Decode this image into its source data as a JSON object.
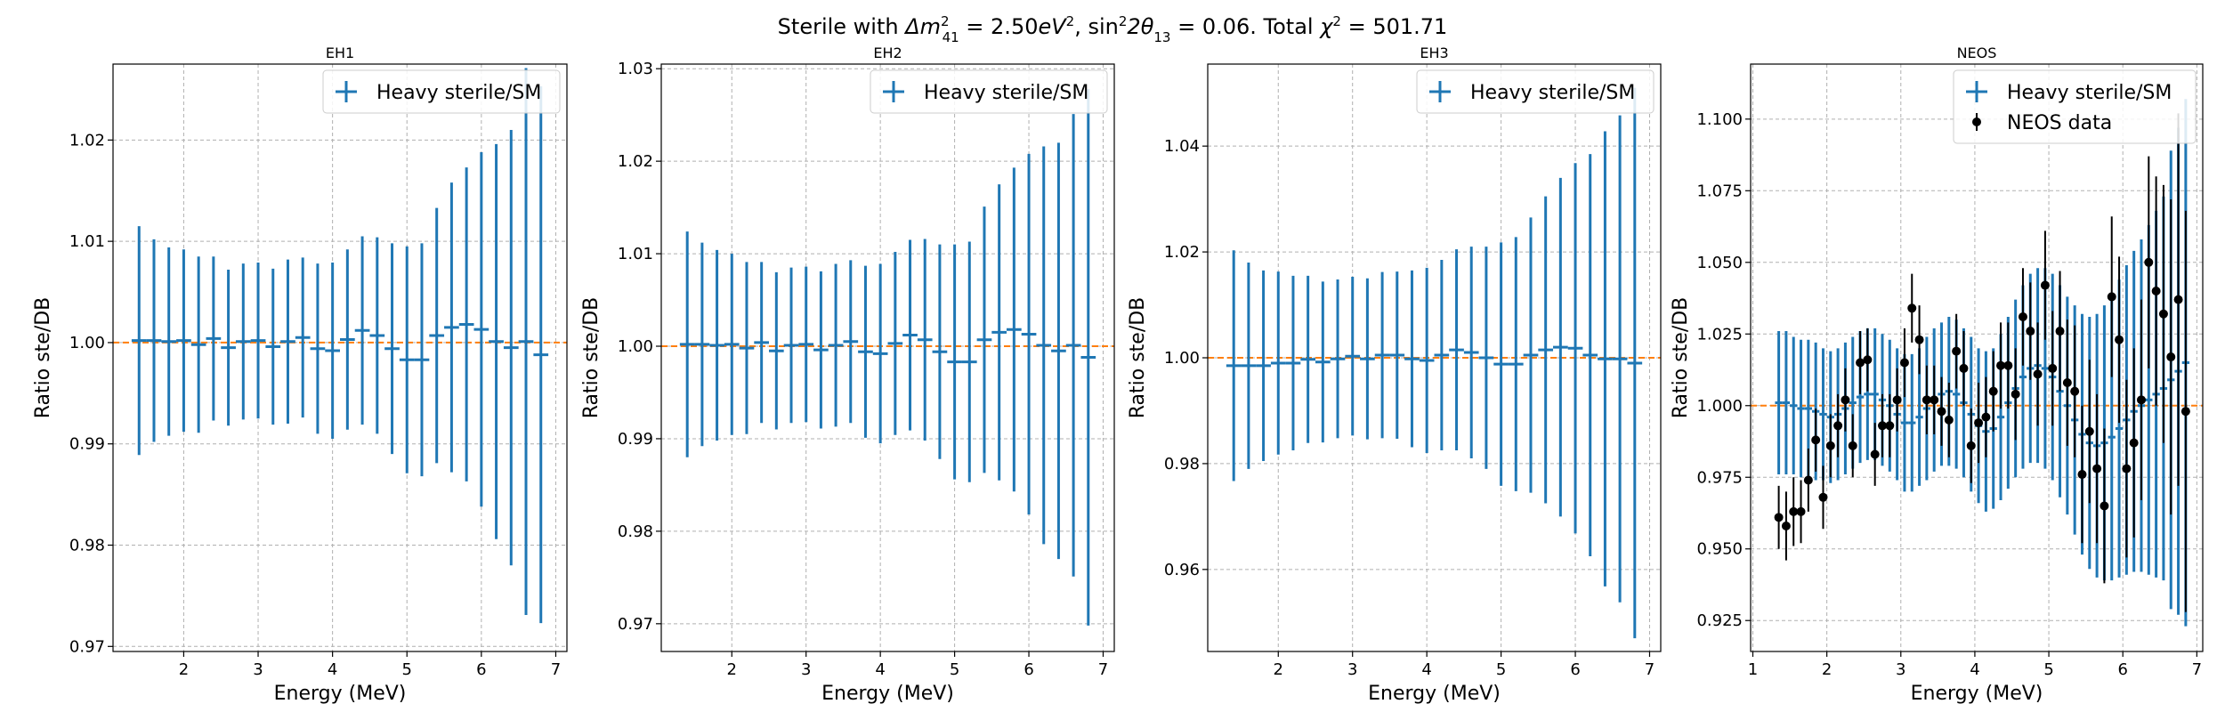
{
  "suptitle": "Sterile with Δm²₄₁ = 2.50eV², sin²2θ₁₃ = 0.06. Total χ² = 501.71",
  "suptitle_parts": {
    "a": "Sterile with ",
    "delta_m": "Δm",
    "sup2": "2",
    "sub41": "41",
    "eq1": " = 2.50",
    "eV": "eV",
    "comma": ", ",
    "sin": "sin",
    "two_theta": "2θ",
    "sub13": "13",
    "eq2": " = 0.06. Total ",
    "chi": "χ",
    "eq3": " = 501.71"
  },
  "colors": {
    "series": "#1f77b4",
    "reference": "#ff7f0e",
    "data": "#000000",
    "grid": "#b0b0b0"
  },
  "chart_data": [
    {
      "type": "scatter",
      "title": "EH1",
      "xlabel": "Energy (MeV)",
      "ylabel": "Ratio ste/DB",
      "xlim": [
        1.05,
        7.15
      ],
      "ylim": [
        0.9695,
        1.0275
      ],
      "xticks": [
        2,
        3,
        4,
        5,
        6,
        7
      ],
      "yticks": [
        0.97,
        0.98,
        0.99,
        1.0,
        1.01,
        1.02
      ],
      "ytick_labels": [
        "0.97",
        "0.98",
        "0.99",
        "1.00",
        "1.01",
        "1.02"
      ],
      "grid": true,
      "legend_position": "upper right",
      "reference_line": 1.0,
      "series": [
        {
          "name": "Heavy sterile/SM",
          "style": "errorbar",
          "half_width": 0.1,
          "x": [
            1.4,
            1.6,
            1.8,
            2.0,
            2.2,
            2.4,
            2.6,
            2.8,
            3.0,
            3.2,
            3.4,
            3.6,
            3.8,
            4.0,
            4.2,
            4.4,
            4.6,
            4.8,
            5.0,
            5.2,
            5.4,
            5.6,
            5.8,
            6.0,
            6.2,
            6.4,
            6.6,
            6.8
          ],
          "y": [
            1.0002,
            1.0002,
            1.0001,
            1.0002,
            0.9998,
            1.0004,
            0.9995,
            1.0001,
            1.0002,
            0.9996,
            1.0001,
            1.0005,
            0.9994,
            0.9992,
            1.0003,
            1.0012,
            1.0007,
            0.9994,
            0.9983,
            0.9983,
            1.0007,
            1.0015,
            1.0018,
            1.0013,
            1.0001,
            0.9995,
            1.0001,
            0.9988
          ],
          "yerr": [
            0.0113,
            0.01,
            0.0093,
            0.009,
            0.0087,
            0.0081,
            0.0077,
            0.0077,
            0.0077,
            0.0077,
            0.0081,
            0.0079,
            0.0084,
            0.0087,
            0.0089,
            0.0093,
            0.0097,
            0.0104,
            0.0112,
            0.0115,
            0.0126,
            0.0143,
            0.0155,
            0.0175,
            0.0195,
            0.0215,
            0.027,
            0.0265
          ]
        }
      ]
    },
    {
      "type": "scatter",
      "title": "EH2",
      "xlabel": "Energy (MeV)",
      "ylabel": "Ratio ste/DB",
      "xlim": [
        1.05,
        7.15
      ],
      "ylim": [
        0.967,
        1.0305
      ],
      "xticks": [
        2,
        3,
        4,
        5,
        6,
        7
      ],
      "yticks": [
        0.97,
        0.98,
        0.99,
        1.0,
        1.01,
        1.02,
        1.03
      ],
      "ytick_labels": [
        "0.97",
        "0.98",
        "0.99",
        "1.00",
        "1.01",
        "1.02",
        "1.03"
      ],
      "grid": true,
      "legend_position": "upper right",
      "reference_line": 1.0,
      "series": [
        {
          "name": "Heavy sterile/SM",
          "style": "errorbar",
          "half_width": 0.1,
          "x": [
            1.4,
            1.6,
            1.8,
            2.0,
            2.2,
            2.4,
            2.6,
            2.8,
            3.0,
            3.2,
            3.4,
            3.6,
            3.8,
            4.0,
            4.2,
            4.4,
            4.6,
            4.8,
            5.0,
            5.2,
            5.4,
            5.6,
            5.8,
            6.0,
            6.2,
            6.4,
            6.6,
            6.8
          ],
          "y": [
            1.0002,
            1.0002,
            1.0001,
            1.0002,
            0.9998,
            1.0004,
            0.9995,
            1.0001,
            1.0002,
            0.9996,
            1.0001,
            1.0005,
            0.9994,
            0.9992,
            1.0003,
            1.0012,
            1.0007,
            0.9994,
            0.9983,
            0.9983,
            1.0007,
            1.0015,
            1.0018,
            1.0013,
            1.0001,
            0.9995,
            1.0001,
            0.9988
          ],
          "yerr": [
            0.0122,
            0.011,
            0.0103,
            0.0098,
            0.0093,
            0.0087,
            0.0085,
            0.0084,
            0.0084,
            0.0085,
            0.0088,
            0.0088,
            0.0093,
            0.0097,
            0.0099,
            0.0103,
            0.0109,
            0.0116,
            0.0127,
            0.013,
            0.0144,
            0.016,
            0.0175,
            0.0195,
            0.0215,
            0.0225,
            0.025,
            0.029
          ]
        }
      ]
    },
    {
      "type": "scatter",
      "title": "EH3",
      "xlabel": "Energy (MeV)",
      "ylabel": "Ratio ste/DB",
      "xlim": [
        1.05,
        7.15
      ],
      "ylim": [
        0.9445,
        1.0555
      ],
      "xticks": [
        2,
        3,
        4,
        5,
        6,
        7
      ],
      "yticks": [
        0.96,
        0.98,
        1.0,
        1.02,
        1.04
      ],
      "ytick_labels": [
        "0.96",
        "0.98",
        "1.00",
        "1.02",
        "1.04"
      ],
      "grid": true,
      "legend_position": "upper right",
      "reference_line": 1.0,
      "series": [
        {
          "name": "Heavy sterile/SM",
          "style": "errorbar",
          "half_width": 0.1,
          "x": [
            1.4,
            1.6,
            1.8,
            2.0,
            2.2,
            2.4,
            2.6,
            2.8,
            3.0,
            3.2,
            3.4,
            3.6,
            3.8,
            4.0,
            4.2,
            4.4,
            4.6,
            4.8,
            5.0,
            5.2,
            5.4,
            5.6,
            5.8,
            6.0,
            6.2,
            6.4,
            6.6,
            6.8
          ],
          "y": [
            0.9985,
            0.9985,
            0.9985,
            0.999,
            0.999,
            0.9997,
            0.9992,
            0.9998,
            1.0003,
            0.9998,
            1.0005,
            1.0005,
            0.9998,
            0.9995,
            1.0005,
            1.0015,
            1.001,
            1.0,
            0.9988,
            0.9988,
            1.0005,
            1.0015,
            1.002,
            1.0018,
            1.0005,
            0.9998,
            0.9998,
            0.999
          ],
          "yerr": [
            0.0218,
            0.0195,
            0.018,
            0.0173,
            0.0165,
            0.0158,
            0.0152,
            0.015,
            0.015,
            0.0152,
            0.0157,
            0.0158,
            0.0167,
            0.0175,
            0.018,
            0.019,
            0.02,
            0.021,
            0.023,
            0.024,
            0.026,
            0.029,
            0.032,
            0.035,
            0.038,
            0.043,
            0.046,
            0.052
          ]
        }
      ]
    },
    {
      "type": "scatter",
      "title": "NEOS",
      "xlabel": "Energy (MeV)",
      "ylabel": "Ratio ste/DB",
      "xlim": [
        0.97,
        7.08
      ],
      "ylim": [
        0.9142,
        1.1192
      ],
      "xticks": [
        1,
        2,
        3,
        4,
        5,
        6,
        7
      ],
      "yticks": [
        0.925,
        0.95,
        0.975,
        1.0,
        1.025,
        1.05,
        1.075,
        1.1
      ],
      "ytick_labels": [
        "0.925",
        "0.950",
        "0.975",
        "1.000",
        "1.025",
        "1.050",
        "1.075",
        "1.100"
      ],
      "grid": true,
      "legend_position": "upper right",
      "reference_line": 1.0,
      "series": [
        {
          "name": "Heavy sterile/SM",
          "style": "errorbar",
          "half_width": 0.05,
          "x": [
            1.35,
            1.45,
            1.55,
            1.65,
            1.75,
            1.85,
            1.95,
            2.05,
            2.15,
            2.25,
            2.35,
            2.45,
            2.55,
            2.65,
            2.75,
            2.85,
            2.95,
            3.05,
            3.15,
            3.25,
            3.35,
            3.45,
            3.55,
            3.65,
            3.75,
            3.85,
            3.95,
            4.05,
            4.15,
            4.25,
            4.35,
            4.45,
            4.55,
            4.65,
            4.75,
            4.85,
            4.95,
            5.05,
            5.15,
            5.25,
            5.35,
            5.45,
            5.55,
            5.65,
            5.75,
            5.85,
            5.95,
            6.05,
            6.15,
            6.25,
            6.35,
            6.45,
            6.55,
            6.65,
            6.75,
            6.85
          ],
          "y": [
            1.001,
            1.001,
            1.0,
            0.999,
            0.999,
            0.998,
            0.997,
            0.996,
            0.997,
            0.999,
            1.001,
            1.003,
            1.004,
            1.004,
            1.002,
            1.0,
            0.997,
            0.994,
            0.994,
            0.996,
            0.999,
            1.002,
            1.004,
            1.005,
            1.004,
            1.001,
            0.997,
            0.993,
            0.991,
            0.992,
            0.996,
            1.001,
            1.006,
            1.01,
            1.013,
            1.014,
            1.013,
            1.01,
            1.005,
            1.0,
            0.995,
            0.99,
            0.987,
            0.986,
            0.987,
            0.989,
            0.992,
            0.995,
            0.998,
            1.0,
            1.002,
            1.004,
            1.006,
            1.009,
            1.012,
            1.015
          ],
          "yerr": [
            0.025,
            0.025,
            0.024,
            0.024,
            0.024,
            0.024,
            0.023,
            0.023,
            0.023,
            0.023,
            0.023,
            0.023,
            0.023,
            0.023,
            0.023,
            0.023,
            0.023,
            0.024,
            0.024,
            0.024,
            0.025,
            0.025,
            0.025,
            0.026,
            0.026,
            0.026,
            0.027,
            0.027,
            0.028,
            0.028,
            0.029,
            0.03,
            0.031,
            0.032,
            0.033,
            0.034,
            0.035,
            0.036,
            0.037,
            0.038,
            0.04,
            0.042,
            0.044,
            0.046,
            0.048,
            0.05,
            0.052,
            0.054,
            0.056,
            0.058,
            0.061,
            0.064,
            0.067,
            0.08,
            0.085,
            0.092
          ]
        },
        {
          "name": "NEOS data",
          "style": "points",
          "x": [
            1.35,
            1.45,
            1.55,
            1.65,
            1.75,
            1.85,
            1.95,
            2.05,
            2.15,
            2.25,
            2.35,
            2.45,
            2.55,
            2.65,
            2.75,
            2.85,
            2.95,
            3.05,
            3.15,
            3.25,
            3.35,
            3.45,
            3.55,
            3.65,
            3.75,
            3.85,
            3.95,
            4.05,
            4.15,
            4.25,
            4.35,
            4.45,
            4.55,
            4.65,
            4.75,
            4.85,
            4.95,
            5.05,
            5.15,
            5.25,
            5.35,
            5.45,
            5.55,
            5.65,
            5.75,
            5.85,
            5.95,
            6.05,
            6.15,
            6.25,
            6.35,
            6.45,
            6.55,
            6.65,
            6.75,
            6.85
          ],
          "y": [
            0.961,
            0.958,
            0.963,
            0.963,
            0.974,
            0.988,
            0.968,
            0.986,
            0.993,
            1.002,
            0.986,
            1.015,
            1.016,
            0.983,
            0.993,
            0.993,
            1.002,
            1.015,
            1.034,
            1.023,
            1.002,
            1.002,
            0.998,
            0.995,
            1.019,
            1.013,
            0.986,
            0.994,
            0.996,
            1.005,
            1.014,
            1.014,
            1.004,
            1.031,
            1.026,
            1.011,
            1.042,
            1.013,
            1.026,
            1.008,
            1.005,
            0.976,
            0.991,
            0.978,
            0.965,
            1.038,
            1.023,
            0.978,
            0.987,
            1.002,
            1.05,
            1.04,
            1.032,
            1.017,
            1.037,
            0.998
          ],
          "yerr": [
            0.011,
            0.012,
            0.012,
            0.011,
            0.011,
            0.011,
            0.011,
            0.011,
            0.011,
            0.011,
            0.011,
            0.011,
            0.011,
            0.011,
            0.011,
            0.011,
            0.011,
            0.012,
            0.012,
            0.012,
            0.012,
            0.012,
            0.012,
            0.013,
            0.013,
            0.013,
            0.013,
            0.014,
            0.014,
            0.014,
            0.015,
            0.015,
            0.016,
            0.017,
            0.017,
            0.018,
            0.019,
            0.02,
            0.021,
            0.022,
            0.023,
            0.024,
            0.025,
            0.026,
            0.027,
            0.028,
            0.029,
            0.031,
            0.033,
            0.035,
            0.037,
            0.04,
            0.045,
            0.055,
            0.065,
            0.07
          ]
        }
      ]
    }
  ]
}
